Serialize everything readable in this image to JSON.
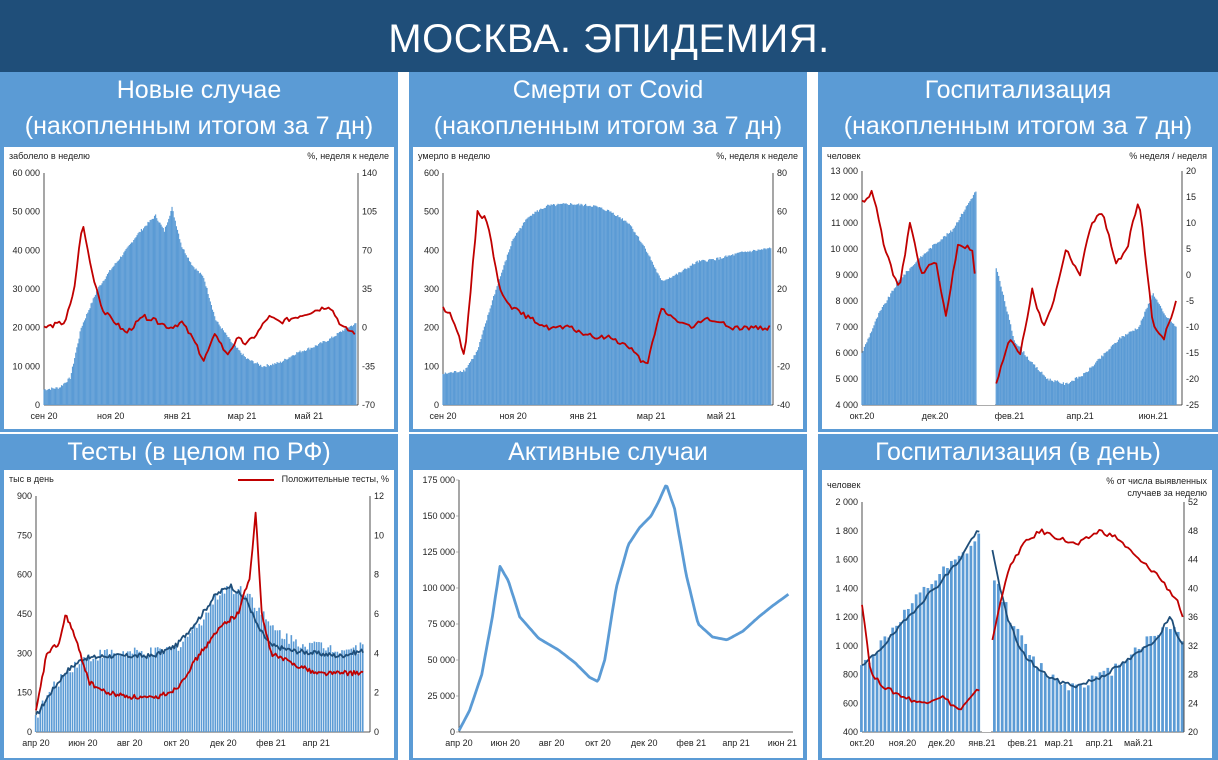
{
  "page_title": "МОСКВА. ЭПИДЕМИЯ.",
  "colors": {
    "header_bg": "#1f4e79",
    "panel_bg": "#5b9bd5",
    "area": "#5b9bd5",
    "red": "#c00000",
    "navy": "#1f4e79",
    "light_line": "#5b9bd5"
  },
  "chart_data": [
    {
      "type": "area",
      "title_line1": "Новые случае",
      "title_line2": "(накопленным итогом за 7 дн)",
      "ylabel": "заболело в неделю",
      "y2label": "%, неделя к неделе",
      "ylim": [
        0,
        60000
      ],
      "y2lim": [
        -70,
        140
      ],
      "yticks": [
        "0",
        "10 000",
        "20 000",
        "30 000",
        "40 000",
        "50 000",
        "60 000"
      ],
      "y2ticks": [
        "-70",
        "-35",
        "0",
        "35",
        "70",
        "105",
        "140"
      ],
      "xticks": [
        "сен 20",
        "ноя 20",
        "янв 21",
        "мар 21",
        "май 21"
      ],
      "x_range": [
        "2020-09-01",
        "2021-06-15"
      ],
      "series": [
        {
          "kind": "area",
          "axis": "left",
          "x": [
            "2020-09-01",
            "2020-09-15",
            "2020-09-25",
            "2020-10-05",
            "2020-10-20",
            "2020-11-01",
            "2020-11-15",
            "2020-11-25",
            "2020-12-05",
            "2020-12-12",
            "2020-12-20",
            "2020-12-27",
            "2021-01-05",
            "2021-01-15",
            "2021-01-25",
            "2021-02-05",
            "2021-02-20",
            "2021-03-05",
            "2021-03-20",
            "2021-04-05",
            "2021-04-20",
            "2021-05-05",
            "2021-05-20",
            "2021-06-05",
            "2021-06-13"
          ],
          "values": [
            4000,
            4500,
            7000,
            20000,
            30000,
            35000,
            40000,
            44000,
            47000,
            49000,
            45000,
            51000,
            41000,
            36000,
            33000,
            22000,
            16000,
            12000,
            10000,
            11000,
            13500,
            15000,
            17000,
            20000,
            21000
          ]
        },
        {
          "kind": "line",
          "axis": "right",
          "x": [
            "2020-09-01",
            "2020-09-20",
            "2020-09-28",
            "2020-10-06",
            "2020-10-15",
            "2020-10-25",
            "2020-11-05",
            "2020-11-15",
            "2020-12-01",
            "2020-12-15",
            "2020-12-25",
            "2021-01-05",
            "2021-01-15",
            "2021-01-25",
            "2021-02-05",
            "2021-02-15",
            "2021-02-25",
            "2021-03-05",
            "2021-03-15",
            "2021-03-25",
            "2021-04-05",
            "2021-04-20",
            "2021-05-05",
            "2021-05-20",
            "2021-06-01",
            "2021-06-13"
          ],
          "values": [
            0,
            5,
            30,
            95,
            50,
            15,
            5,
            -5,
            10,
            5,
            0,
            5,
            -10,
            -30,
            -5,
            -25,
            -10,
            -15,
            -5,
            10,
            5,
            10,
            15,
            20,
            0,
            -5
          ]
        }
      ]
    },
    {
      "type": "area",
      "title_line1": "Смерти от Covid",
      "title_line2": "(накопленным итогом за 7 дн)",
      "ylabel": "умерло в неделю",
      "y2label": "%, неделя к неделе",
      "ylim": [
        0,
        600
      ],
      "y2lim": [
        -40,
        80
      ],
      "yticks": [
        "0",
        "100",
        "200",
        "300",
        "400",
        "500",
        "600"
      ],
      "y2ticks": [
        "-40",
        "-20",
        "0",
        "20",
        "40",
        "60",
        "80"
      ],
      "xticks": [
        "сен 20",
        "ноя 20",
        "янв 21",
        "мар 21",
        "май 21"
      ],
      "x_range": [
        "2020-09-01",
        "2021-06-15"
      ],
      "series": [
        {
          "kind": "area",
          "axis": "left",
          "x": [
            "2020-09-01",
            "2020-09-20",
            "2020-10-01",
            "2020-10-15",
            "2020-11-01",
            "2020-11-15",
            "2020-12-01",
            "2020-12-20",
            "2021-01-10",
            "2021-01-25",
            "2021-02-10",
            "2021-02-25",
            "2021-03-10",
            "2021-03-25",
            "2021-04-10",
            "2021-05-01",
            "2021-05-20",
            "2021-06-13"
          ],
          "values": [
            80,
            90,
            140,
            280,
            430,
            490,
            515,
            520,
            515,
            500,
            470,
            400,
            320,
            340,
            370,
            380,
            395,
            405
          ]
        },
        {
          "kind": "line",
          "axis": "right",
          "x": [
            "2020-09-01",
            "2020-09-10",
            "2020-09-20",
            "2020-10-01",
            "2020-10-10",
            "2020-10-20",
            "2020-11-01",
            "2020-11-15",
            "2020-12-01",
            "2020-12-20",
            "2021-01-10",
            "2021-01-25",
            "2021-02-10",
            "2021-02-25",
            "2021-03-10",
            "2021-03-20",
            "2021-04-05",
            "2021-04-20",
            "2021-05-10",
            "2021-06-13"
          ],
          "values": [
            10,
            5,
            -15,
            60,
            55,
            20,
            10,
            5,
            0,
            0,
            -5,
            -5,
            -10,
            -20,
            10,
            5,
            0,
            5,
            0,
            0
          ]
        }
      ]
    },
    {
      "type": "area",
      "title_line1": "Госпитализация",
      "title_line2": "(накопленным итогом за 7 дн)",
      "ylabel": "человек",
      "y2label": "% неделя / неделя",
      "ylim": [
        4000,
        13000
      ],
      "y2lim": [
        -25,
        20
      ],
      "yticks": [
        "4 000",
        "5 000",
        "6 000",
        "7 000",
        "8 000",
        "9 000",
        "10 000",
        "11 000",
        "12 000",
        "13 000"
      ],
      "y2ticks": [
        "-25",
        "-20",
        "-15",
        "-10",
        "-5",
        "0",
        "5",
        "10",
        "15",
        "20"
      ],
      "xticks": [
        "окт.20",
        "дек.20",
        "фев.21",
        "апр.21",
        "июн.21"
      ],
      "x_range": [
        "2020-10-01",
        "2021-06-25"
      ],
      "gap": [
        "2021-01-05",
        "2021-01-20"
      ],
      "series": [
        {
          "kind": "area",
          "axis": "left",
          "x": [
            "2020-10-01",
            "2020-10-15",
            "2020-11-01",
            "2020-11-15",
            "2020-12-01",
            "2020-12-15",
            "2021-01-01",
            "2021-01-05",
            "2021-01-20",
            "2021-02-05",
            "2021-02-20",
            "2021-03-05",
            "2021-03-20",
            "2021-04-05",
            "2021-04-20",
            "2021-05-05",
            "2021-05-20",
            "2021-06-01",
            "2021-06-10",
            "2021-06-20"
          ],
          "values": [
            6000,
            7500,
            8800,
            9500,
            10200,
            10700,
            12000,
            12300,
            9500,
            6500,
            5600,
            5000,
            4800,
            5200,
            5900,
            6600,
            7000,
            8300,
            7500,
            7000
          ]
        },
        {
          "kind": "line",
          "axis": "right",
          "x": [
            "2020-10-01",
            "2020-10-10",
            "2020-10-20",
            "2020-11-01",
            "2020-11-10",
            "2020-11-20",
            "2020-12-01",
            "2020-12-10",
            "2020-12-20",
            "2021-01-01",
            "2021-01-05",
            "2021-01-20",
            "2021-02-01",
            "2021-02-10",
            "2021-02-20",
            "2021-03-01",
            "2021-03-10",
            "2021-03-20",
            "2021-04-01",
            "2021-04-10",
            "2021-04-20",
            "2021-05-01",
            "2021-05-10",
            "2021-05-20",
            "2021-06-01",
            "2021-06-10",
            "2021-06-20"
          ],
          "values": [
            14,
            16,
            5,
            -3,
            10,
            0,
            3,
            -8,
            6,
            5,
            -5,
            -22,
            -12,
            -15,
            -3,
            -10,
            -5,
            5,
            0,
            10,
            12,
            2,
            5,
            15,
            -10,
            -12,
            -5
          ]
        }
      ]
    },
    {
      "type": "bar",
      "title_line1": "Тесты (в целом по РФ)",
      "ylabel": "тыс в день",
      "legend": "Положительные тесты, %",
      "ylim": [
        0,
        900
      ],
      "y2lim": [
        0,
        12
      ],
      "yticks": [
        "0",
        "150",
        "300",
        "450",
        "600",
        "750",
        "900"
      ],
      "y2ticks": [
        "0",
        "2",
        "4",
        "6",
        "8",
        "10",
        "12"
      ],
      "xticks": [
        "апр 20",
        "июн 20",
        "авг 20",
        "окт 20",
        "дек 20",
        "фев 21",
        "апр 21"
      ],
      "x_range": [
        "2020-04-01",
        "2021-06-10"
      ],
      "series": [
        {
          "kind": "bar",
          "axis": "left",
          "x": [
            "2020-04-01",
            "2020-04-20",
            "2020-05-10",
            "2020-06-01",
            "2020-07-01",
            "2020-08-01",
            "2020-09-01",
            "2020-10-01",
            "2020-11-01",
            "2020-12-01",
            "2021-01-01",
            "2021-02-01",
            "2021-03-01",
            "2021-04-01",
            "2021-05-01",
            "2021-06-01"
          ],
          "values": [
            60,
            150,
            230,
            280,
            300,
            300,
            300,
            320,
            420,
            550,
            540,
            400,
            350,
            330,
            320,
            320
          ]
        },
        {
          "kind": "line",
          "axis": "left",
          "x": [
            "2020-04-01",
            "2020-04-20",
            "2020-05-10",
            "2020-06-01",
            "2020-07-01",
            "2020-08-01",
            "2020-09-01",
            "2020-10-01",
            "2020-11-01",
            "2020-11-20",
            "2020-12-10",
            "2021-01-01",
            "2021-01-15",
            "2021-02-01",
            "2021-03-01",
            "2021-04-01",
            "2021-05-01",
            "2021-06-01"
          ],
          "values": [
            60,
            150,
            230,
            280,
            290,
            290,
            290,
            330,
            440,
            520,
            560,
            500,
            400,
            330,
            310,
            300,
            290,
            310
          ]
        },
        {
          "kind": "line",
          "axis": "right",
          "x": [
            "2020-04-01",
            "2020-04-15",
            "2020-05-01",
            "2020-05-10",
            "2020-05-20",
            "2020-06-10",
            "2020-07-01",
            "2020-08-01",
            "2020-09-01",
            "2020-10-01",
            "2020-11-01",
            "2020-12-01",
            "2020-12-20",
            "2021-01-05",
            "2021-01-12",
            "2021-01-20",
            "2021-02-01",
            "2021-03-01",
            "2021-04-01",
            "2021-05-01",
            "2021-06-01"
          ],
          "values": [
            1,
            4,
            4.5,
            6,
            5,
            2.5,
            2,
            1.8,
            1.7,
            2.2,
            4,
            5.5,
            6,
            8,
            11.2,
            6,
            4,
            3.5,
            3,
            3,
            3
          ]
        }
      ]
    },
    {
      "type": "line",
      "title_line1": "Активные случаи",
      "ylim": [
        0,
        175000
      ],
      "yticks": [
        "0",
        "25 000",
        "50 000",
        "75 000",
        "100 000",
        "125 000",
        "150 000",
        "175 000"
      ],
      "xticks": [
        "апр 20",
        "июн 20",
        "авг 20",
        "окт 20",
        "дек 20",
        "фев 21",
        "апр 21",
        "июн 21"
      ],
      "x_range": [
        "2020-04-01",
        "2021-06-15"
      ],
      "series": [
        {
          "kind": "line",
          "axis": "left",
          "x": [
            "2020-04-01",
            "2020-04-15",
            "2020-05-01",
            "2020-05-15",
            "2020-05-25",
            "2020-06-05",
            "2020-06-20",
            "2020-07-15",
            "2020-08-10",
            "2020-09-01",
            "2020-09-20",
            "2020-10-01",
            "2020-10-10",
            "2020-10-25",
            "2020-11-10",
            "2020-11-25",
            "2020-12-10",
            "2020-12-20",
            "2020-12-30",
            "2021-01-10",
            "2021-01-25",
            "2021-02-10",
            "2021-03-01",
            "2021-03-20",
            "2021-04-10",
            "2021-05-01",
            "2021-05-20",
            "2021-06-10"
          ],
          "values": [
            1000,
            15000,
            40000,
            80000,
            115000,
            105000,
            80000,
            65000,
            57000,
            48000,
            38000,
            35000,
            50000,
            100000,
            130000,
            142000,
            150000,
            160000,
            172000,
            155000,
            110000,
            75000,
            66000,
            64000,
            70000,
            80000,
            88000,
            96000
          ]
        }
      ]
    },
    {
      "type": "bar",
      "title_line1": "Госпитализация (в день)",
      "ylabel": "человек",
      "y2label_line1": "% от числа выявленных",
      "y2label_line2": "случаев за неделю",
      "ylim": [
        400,
        2000
      ],
      "y2lim": [
        20,
        52
      ],
      "yticks": [
        "400",
        "600",
        "800",
        "1 000",
        "1 200",
        "1 400",
        "1 600",
        "1 800",
        "2 000"
      ],
      "y2ticks": [
        "20",
        "24",
        "28",
        "32",
        "36",
        "40",
        "44",
        "48",
        "52"
      ],
      "xticks": [
        "окт.20",
        "ноя.20",
        "дек.20",
        "янв.21",
        "фев.21",
        "мар.21",
        "апр.21",
        "май.21"
      ],
      "x_range": [
        "2020-10-01",
        "2021-06-05"
      ],
      "gap": [
        "2021-01-01",
        "2021-01-08"
      ],
      "series": [
        {
          "kind": "bar",
          "axis": "left",
          "x": [
            "2020-10-01",
            "2020-10-15",
            "2020-11-01",
            "2020-11-15",
            "2020-12-01",
            "2020-12-15",
            "2020-12-30",
            "2021-01-10",
            "2021-01-25",
            "2021-02-10",
            "2021-02-25",
            "2021-03-10",
            "2021-03-25",
            "2021-04-10",
            "2021-04-25",
            "2021-05-10",
            "2021-05-25",
            "2021-06-05"
          ],
          "values": [
            850,
            1000,
            1200,
            1350,
            1500,
            1600,
            1750,
            1500,
            1150,
            900,
            780,
            720,
            760,
            820,
            950,
            1050,
            1150,
            1050
          ]
        },
        {
          "kind": "line",
          "axis": "left",
          "x": [
            "2020-10-01",
            "2020-10-15",
            "2020-11-01",
            "2020-11-15",
            "2020-12-01",
            "2020-12-15",
            "2020-12-28",
            "2021-01-08",
            "2021-01-20",
            "2021-02-01",
            "2021-02-15",
            "2021-03-01",
            "2021-03-15",
            "2021-04-01",
            "2021-04-15",
            "2021-05-01",
            "2021-05-15",
            "2021-05-25",
            "2021-06-05"
          ],
          "values": [
            850,
            980,
            1150,
            1300,
            1450,
            1600,
            1800,
            1700,
            1200,
            950,
            820,
            750,
            720,
            780,
            850,
            950,
            1050,
            1200,
            980
          ]
        },
        {
          "kind": "line",
          "axis": "right",
          "x": [
            "2020-10-01",
            "2020-10-08",
            "2020-10-20",
            "2020-11-01",
            "2020-11-15",
            "2020-12-01",
            "2020-12-15",
            "2020-12-30",
            "2021-01-08",
            "2021-01-20",
            "2021-02-01",
            "2021-02-15",
            "2021-03-01",
            "2021-03-15",
            "2021-04-01",
            "2021-04-15",
            "2021-05-01",
            "2021-05-15",
            "2021-06-01",
            "2021-06-05"
          ],
          "values": [
            38,
            28,
            26,
            25,
            24,
            25,
            23,
            26,
            32,
            42,
            46,
            48,
            47,
            46,
            48,
            47,
            44,
            42,
            38,
            35
          ]
        }
      ]
    }
  ]
}
